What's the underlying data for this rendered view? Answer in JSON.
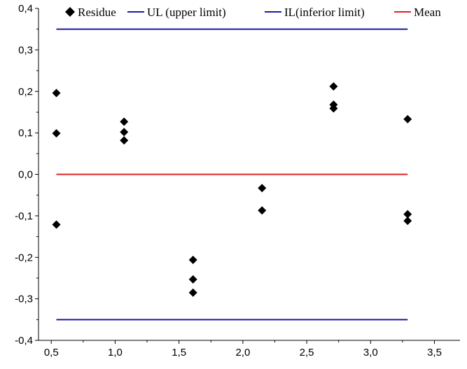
{
  "chart_data": {
    "type": "scatter",
    "title": "",
    "xlabel": "",
    "ylabel": "",
    "xlim": [
      0.4,
      3.7
    ],
    "ylim": [
      -0.4,
      0.4
    ],
    "x_ticks": [
      0.5,
      1.0,
      1.5,
      2.0,
      2.5,
      3.0,
      3.5
    ],
    "x_tick_labels": [
      "0,5",
      "1,0",
      "1,5",
      "2,0",
      "2,5",
      "3,0",
      "3,5"
    ],
    "y_ticks": [
      -0.4,
      -0.3,
      -0.2,
      -0.1,
      0.0,
      0.1,
      0.2,
      0.3,
      0.4
    ],
    "y_tick_labels": [
      "-0,4",
      "-0,3",
      "-0,2",
      "-0,1",
      "0,0",
      "0,1",
      "0,2",
      "0,3",
      "0,4"
    ],
    "grid": false,
    "legend_position": "top",
    "series": [
      {
        "name": "Residue",
        "kind": "scatter",
        "marker": "diamond",
        "color": "#000000",
        "points": [
          [
            0.54,
            0.196
          ],
          [
            0.54,
            0.099
          ],
          [
            0.54,
            -0.121
          ],
          [
            1.07,
            0.127
          ],
          [
            1.07,
            0.102
          ],
          [
            1.07,
            0.082
          ],
          [
            1.61,
            -0.206
          ],
          [
            1.61,
            -0.253
          ],
          [
            1.61,
            -0.285
          ],
          [
            2.15,
            -0.033
          ],
          [
            2.15,
            -0.087
          ],
          [
            2.71,
            0.212
          ],
          [
            2.71,
            0.168
          ],
          [
            2.71,
            0.159
          ],
          [
            3.29,
            0.133
          ],
          [
            3.29,
            -0.096
          ],
          [
            3.29,
            -0.112
          ]
        ]
      },
      {
        "name": "UL (upper limit)",
        "kind": "line",
        "color": "#1a1aa6",
        "x": [
          0.54,
          3.29
        ],
        "y": [
          0.35,
          0.35
        ]
      },
      {
        "name": "IL(inferior limit)",
        "kind": "line",
        "color": "#1a1aa6",
        "x": [
          0.54,
          3.29
        ],
        "y": [
          -0.35,
          -0.35
        ]
      },
      {
        "name": "Mean",
        "kind": "line",
        "color": "#e02020",
        "x": [
          0.54,
          3.29
        ],
        "y": [
          0.0,
          0.0
        ]
      }
    ]
  }
}
